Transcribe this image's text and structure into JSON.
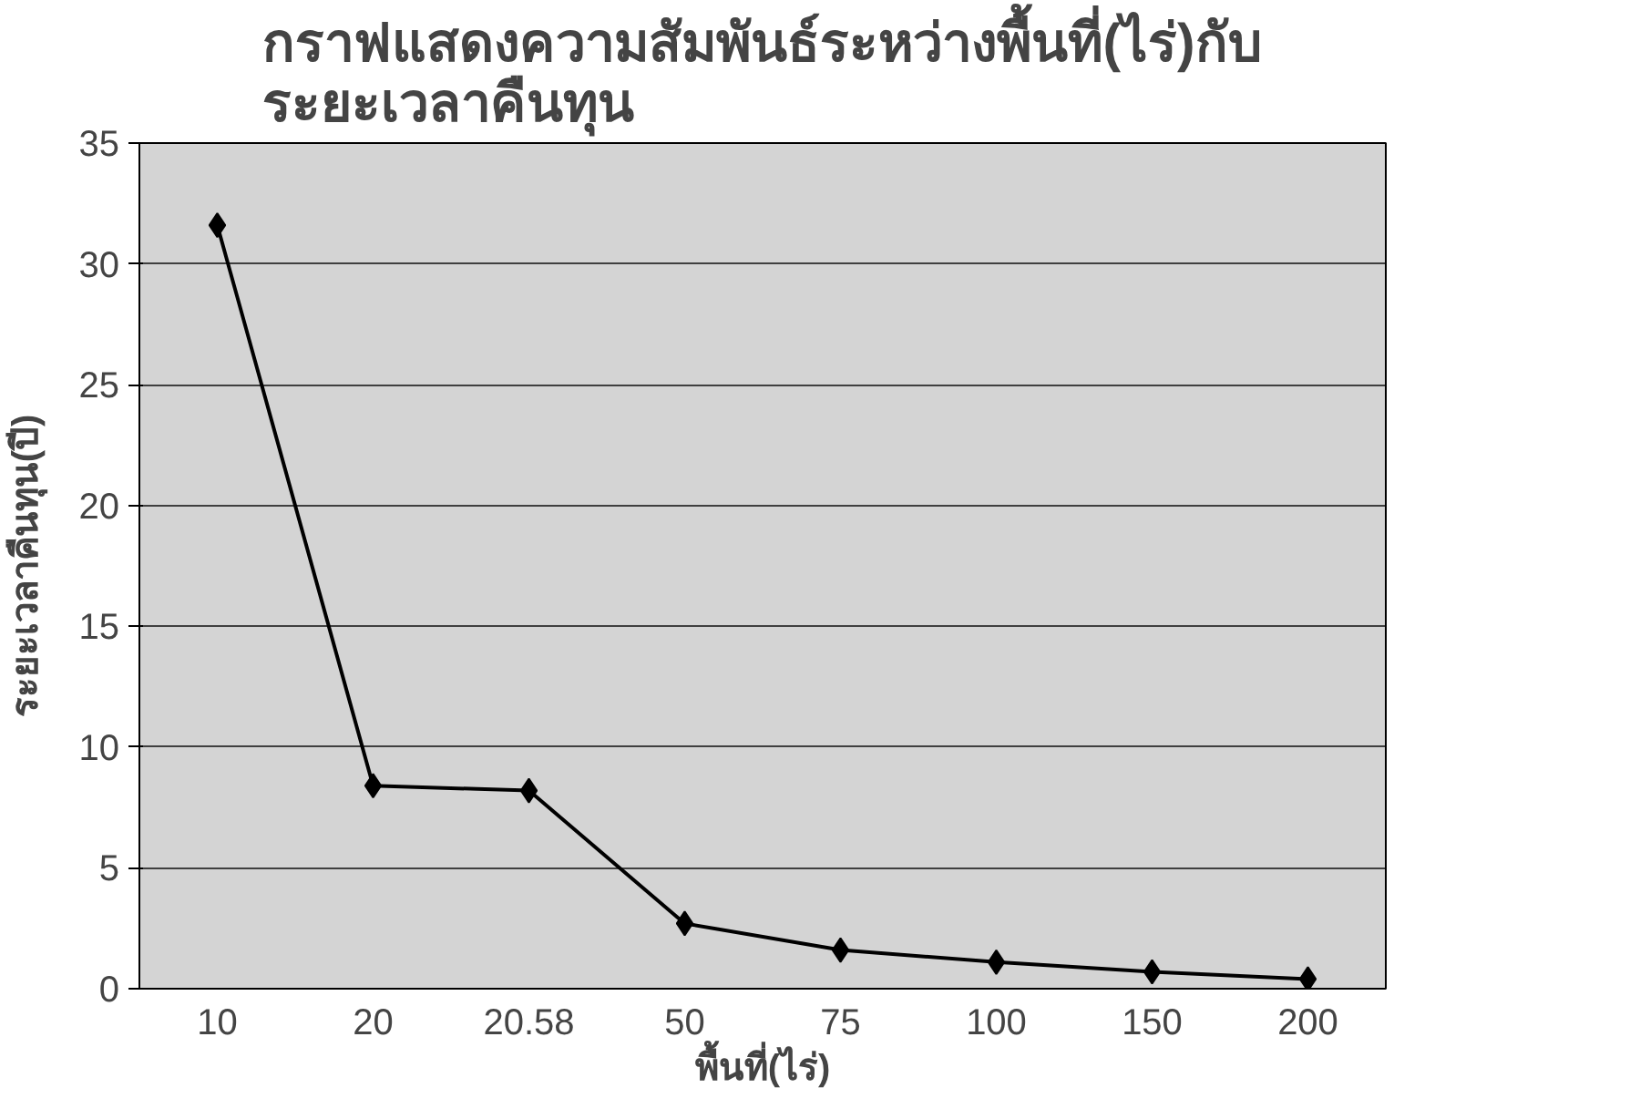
{
  "chart_data": {
    "type": "line",
    "title": "กราฟแสดงความสัมพันธ์ระหว่างพื้นที่(ไร่)กับ\nระยะเวลาคืนทุน",
    "xlabel": "พื้นที่(ไร่)",
    "ylabel": "ระยะเวลาคืนทุน(ปี)",
    "categories": [
      "10",
      "20",
      "20.58",
      "50",
      "75",
      "100",
      "150",
      "200"
    ],
    "series": [
      {
        "color": "#000000",
        "values": [
          31.6,
          8.4,
          8.2,
          2.7,
          1.6,
          1.1,
          0.7,
          0.4
        ]
      }
    ],
    "ylim": [
      0,
      35
    ],
    "yticks": [
      0,
      5,
      10,
      15,
      20,
      25,
      30,
      35
    ],
    "grid": "y",
    "marker": "diamond",
    "line_style": "solid"
  }
}
